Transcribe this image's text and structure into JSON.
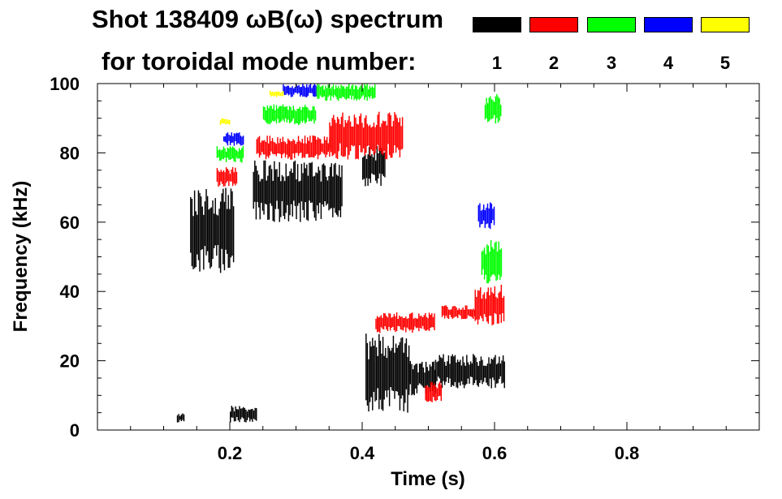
{
  "chart_data": {
    "type": "heatmap",
    "title": "Shot 138409 ωB(ω) spectrum",
    "subtitle": "for toroidal mode number:",
    "xlabel": "Time (s)",
    "ylabel": "Frequency (kHz)",
    "xlim": [
      0.0,
      1.0
    ],
    "ylim": [
      0,
      100
    ],
    "xticks": [
      0.2,
      0.4,
      0.6,
      0.8
    ],
    "xtick_labels": [
      "0.2",
      "0.4",
      "0.6",
      "0.8"
    ],
    "yticks": [
      0,
      20,
      40,
      60,
      80,
      100
    ],
    "ytick_labels": [
      "0",
      "20",
      "40",
      "60",
      "80",
      "100"
    ],
    "legend": [
      {
        "label": "1",
        "color": "#000000"
      },
      {
        "label": "2",
        "color": "#ff0000"
      },
      {
        "label": "3",
        "color": "#00ff00"
      },
      {
        "label": "4",
        "color": "#0000ff"
      },
      {
        "label": "5",
        "color": "#ffff00"
      }
    ],
    "series": [
      {
        "name": "n=1",
        "color": "#000000",
        "regions": [
          {
            "t": [
              0.14,
              0.205
            ],
            "f": [
              45,
              70
            ]
          },
          {
            "t": [
              0.235,
              0.37
            ],
            "f": [
              60,
              78
            ]
          },
          {
            "t": [
              0.4,
              0.435
            ],
            "f": [
              70,
              82
            ]
          },
          {
            "t": [
              0.405,
              0.47
            ],
            "f": [
              5,
              28
            ]
          },
          {
            "t": [
              0.47,
              0.51
            ],
            "f": [
              10,
              20
            ]
          },
          {
            "t": [
              0.51,
              0.615
            ],
            "f": [
              12,
              22
            ]
          },
          {
            "t": [
              0.12,
              0.13
            ],
            "f": [
              2,
              5
            ]
          },
          {
            "t": [
              0.2,
              0.24
            ],
            "f": [
              2,
              7
            ]
          }
        ]
      },
      {
        "name": "n=2",
        "color": "#ff0000",
        "regions": [
          {
            "t": [
              0.18,
              0.21
            ],
            "f": [
              70,
              76
            ]
          },
          {
            "t": [
              0.24,
              0.35
            ],
            "f": [
              78,
              85
            ]
          },
          {
            "t": [
              0.35,
              0.46
            ],
            "f": [
              78,
              92
            ]
          },
          {
            "t": [
              0.42,
              0.51
            ],
            "f": [
              28,
              34
            ]
          },
          {
            "t": [
              0.52,
              0.57
            ],
            "f": [
              32,
              36
            ]
          },
          {
            "t": [
              0.57,
              0.615
            ],
            "f": [
              30,
              42
            ]
          },
          {
            "t": [
              0.495,
              0.52
            ],
            "f": [
              8,
              14
            ]
          }
        ]
      },
      {
        "name": "n=3",
        "color": "#00ff00",
        "regions": [
          {
            "t": [
              0.18,
              0.22
            ],
            "f": [
              77,
              82
            ]
          },
          {
            "t": [
              0.25,
              0.33
            ],
            "f": [
              88,
              94
            ]
          },
          {
            "t": [
              0.33,
              0.42
            ],
            "f": [
              95,
              100
            ]
          },
          {
            "t": [
              0.58,
              0.61
            ],
            "f": [
              42,
              55
            ]
          },
          {
            "t": [
              0.585,
              0.61
            ],
            "f": [
              88,
              97
            ]
          }
        ]
      },
      {
        "name": "n=4",
        "color": "#0000ff",
        "regions": [
          {
            "t": [
              0.19,
              0.22
            ],
            "f": [
              82,
              86
            ]
          },
          {
            "t": [
              0.28,
              0.33
            ],
            "f": [
              96,
              100
            ]
          },
          {
            "t": [
              0.575,
              0.6
            ],
            "f": [
              58,
              66
            ]
          }
        ]
      },
      {
        "name": "n=5",
        "color": "#ffff00",
        "regions": [
          {
            "t": [
              0.185,
              0.2
            ],
            "f": [
              88,
              90
            ]
          },
          {
            "t": [
              0.26,
              0.28
            ],
            "f": [
              96,
              98
            ]
          }
        ]
      }
    ]
  }
}
